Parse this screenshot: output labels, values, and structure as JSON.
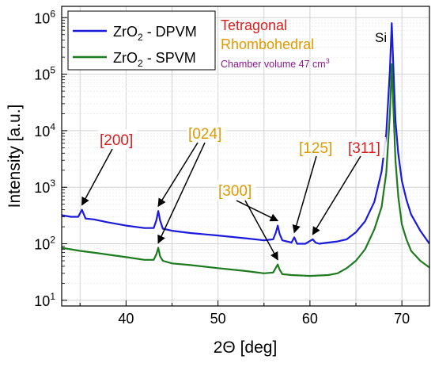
{
  "chart_data": {
    "type": "line",
    "xlabel": "2Θ [deg]",
    "ylabel": "Intensity [a.u.]",
    "xlim": [
      33,
      73
    ],
    "ylim_log10": [
      0.9,
      6.2
    ],
    "yscale": "log",
    "grid": true,
    "x_ticks": [
      {
        "value": 40,
        "label": "40"
      },
      {
        "value": 50,
        "label": "50"
      },
      {
        "value": 60,
        "label": "60"
      },
      {
        "value": 70,
        "label": "70"
      }
    ],
    "y_ticks": [
      {
        "exp": 1,
        "base": "10",
        "sup": "1"
      },
      {
        "exp": 2,
        "base": "10",
        "sup": "2"
      },
      {
        "exp": 3,
        "base": "10",
        "sup": "3"
      },
      {
        "exp": 4,
        "base": "10",
        "sup": "4"
      },
      {
        "exp": 5,
        "base": "10",
        "sup": "5"
      },
      {
        "exp": 6,
        "base": "10",
        "sup": "6"
      }
    ],
    "legend": {
      "placement": "top-left",
      "entries": [
        {
          "main": "ZrO",
          "sub": "2",
          "suffix": " - DPVM",
          "color": "#1a1adb"
        },
        {
          "main": "ZrO",
          "sub": "2",
          "suffix": " - SPVM",
          "color": "#1e7a1e"
        }
      ]
    },
    "phase_notes": {
      "tetragonal": {
        "text": "Tetragonal",
        "color": "#d62020"
      },
      "rhombohedral": {
        "text": "Rhombohedral",
        "color": "#e09a00"
      },
      "chamber": {
        "text": "Chamber volume 47 cm",
        "sup": "3",
        "color": "#8b1a8b"
      }
    },
    "series": [
      {
        "name": "ZrO2 - DPVM",
        "color": "#1a1adb",
        "x": [
          33,
          34,
          34.8,
          35.2,
          35.6,
          36.5,
          38,
          40,
          42,
          43,
          43.3,
          43.5,
          43.7,
          44,
          45,
          47,
          50,
          53,
          55,
          56,
          56.3,
          56.5,
          56.7,
          57,
          58,
          58.3,
          58.6,
          59.5,
          60.3,
          60.6,
          61,
          62,
          63,
          64,
          65,
          66,
          67,
          67.8,
          68.3,
          68.7,
          68.9,
          69.1,
          69.3,
          69.6,
          70,
          70.5,
          71,
          72,
          73
        ],
        "y": [
          320,
          300,
          300,
          400,
          280,
          270,
          240,
          210,
          190,
          190,
          260,
          380,
          260,
          185,
          170,
          155,
          140,
          125,
          115,
          120,
          160,
          210,
          150,
          115,
          105,
          130,
          100,
          100,
          120,
          105,
          100,
          105,
          110,
          120,
          160,
          250,
          550,
          1900,
          9000,
          120000,
          800000,
          100000,
          15000,
          4000,
          1300,
          600,
          330,
          170,
          100
        ]
      },
      {
        "name": "ZrO2 - SPVM",
        "color": "#1e7a1e",
        "x": [
          33,
          35,
          37,
          40,
          42,
          43,
          43.3,
          43.5,
          43.7,
          44,
          45,
          47,
          50,
          53,
          55,
          56,
          56.3,
          56.5,
          56.7,
          57,
          58,
          60,
          62,
          63,
          64,
          65,
          66,
          67,
          67.8,
          68.3,
          68.7,
          68.9,
          69.1,
          69.3,
          69.6,
          70,
          70.5,
          71,
          72,
          73
        ],
        "y": [
          85,
          75,
          68,
          58,
          52,
          52,
          65,
          85,
          60,
          50,
          45,
          42,
          37,
          33,
          30,
          31,
          38,
          43,
          35,
          29,
          28,
          27,
          28,
          30,
          37,
          50,
          80,
          180,
          450,
          1800,
          20000,
          150000,
          20000,
          3000,
          700,
          220,
          120,
          75,
          50,
          38
        ]
      }
    ],
    "annotations": [
      {
        "label": "[200]",
        "color": "#d62020",
        "pointers": [
          {
            "x": 35.2,
            "y": 400
          }
        ]
      },
      {
        "label": "[024]",
        "color": "#e09a00",
        "pointers": [
          {
            "x": 43.5,
            "y": 380
          },
          {
            "x": 43.5,
            "y": 85
          }
        ]
      },
      {
        "label": "[300]",
        "color": "#e09a00",
        "pointers": [
          {
            "x": 56.5,
            "y": 210
          },
          {
            "x": 56.5,
            "y": 43
          }
        ]
      },
      {
        "label": "[125]",
        "color": "#e09a00",
        "pointers": [
          {
            "x": 58.3,
            "y": 130
          }
        ]
      },
      {
        "label": "[311]",
        "color": "#d62020",
        "pointers": [
          {
            "x": 60.3,
            "y": 120
          }
        ]
      },
      {
        "label": "Si",
        "color": "#000000",
        "pointers": []
      }
    ]
  }
}
